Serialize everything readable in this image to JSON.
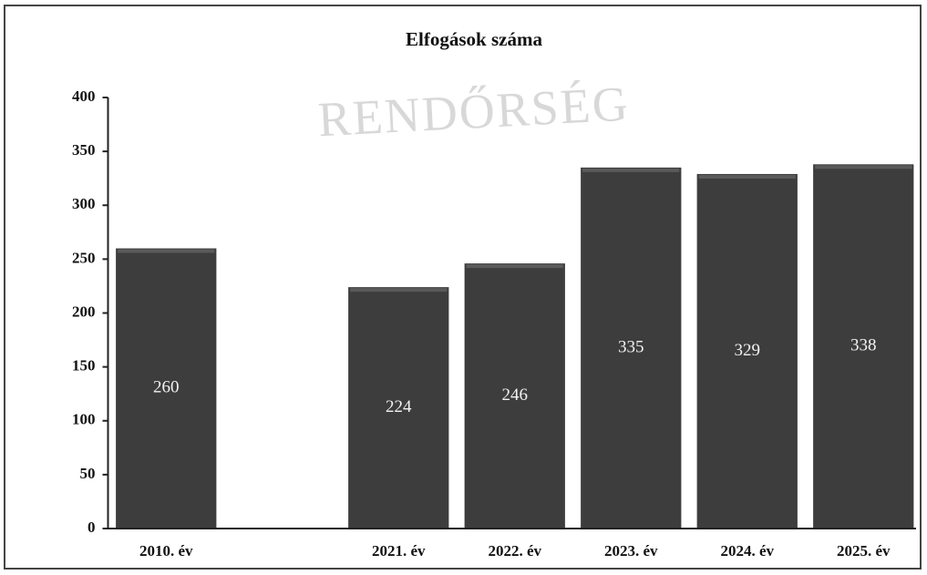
{
  "chart_data": {
    "type": "bar",
    "title": "Elfogások száma",
    "watermark": "RENDŐRSÉG",
    "categories": [
      "2010. év",
      null,
      "2021. év",
      "2022. év",
      "2023. év",
      "2024. év",
      "2025. év"
    ],
    "values": [
      260,
      null,
      224,
      246,
      335,
      329,
      338
    ],
    "color": "#3d3d3d",
    "ylim": [
      0,
      400
    ],
    "yticks": [
      0,
      50,
      100,
      150,
      200,
      250,
      300,
      350,
      400
    ],
    "grid": false
  }
}
